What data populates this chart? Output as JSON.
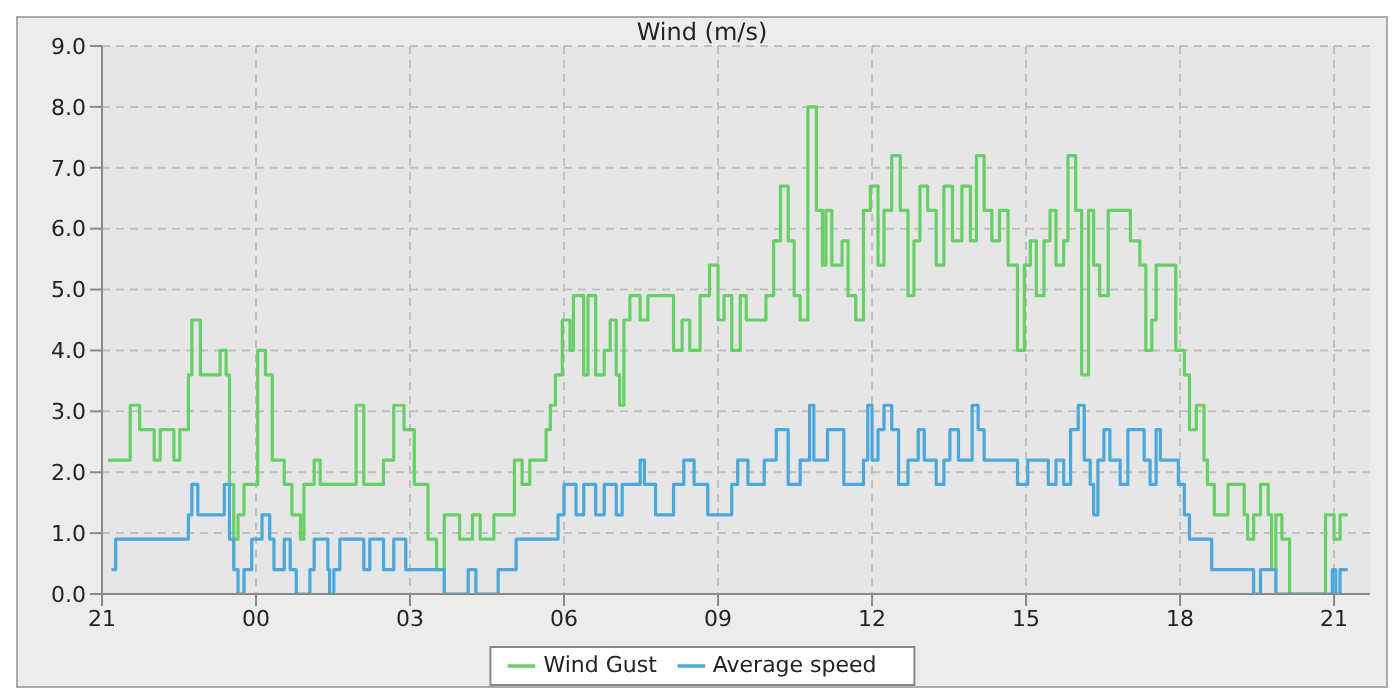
{
  "chart_data": {
    "type": "step",
    "title": "Wind (m/s)",
    "xlim": [
      "2000-01-01T21:00",
      "2000-01-02T21:42"
    ],
    "ylim": [
      0,
      9
    ],
    "xticks": [
      {
        "value": "2000-01-01T21:00",
        "label": "21"
      },
      {
        "value": "2000-01-02T00:00",
        "label": "00"
      },
      {
        "value": "2000-01-02T03:00",
        "label": "03"
      },
      {
        "value": "2000-01-02T06:00",
        "label": "06"
      },
      {
        "value": "2000-01-02T09:00",
        "label": "09"
      },
      {
        "value": "2000-01-02T12:00",
        "label": "12"
      },
      {
        "value": "2000-01-02T15:00",
        "label": "15"
      },
      {
        "value": "2000-01-02T18:00",
        "label": "18"
      },
      {
        "value": "2000-01-02T21:00",
        "label": "21"
      }
    ],
    "yticks": [
      {
        "value": 0,
        "label": "0.0"
      },
      {
        "value": 1,
        "label": "1.0"
      },
      {
        "value": 2,
        "label": "2.0"
      },
      {
        "value": 3,
        "label": "3.0"
      },
      {
        "value": 4,
        "label": "4.0"
      },
      {
        "value": 5,
        "label": "5.0"
      },
      {
        "value": 6,
        "label": "6.0"
      },
      {
        "value": 7,
        "label": "7.0"
      },
      {
        "value": 8,
        "label": "8.0"
      },
      {
        "value": 9,
        "label": "9.0"
      }
    ],
    "grid": true,
    "legend": "bottom",
    "marker": "none",
    "line_style": "solid",
    "series": [
      {
        "name": "Wind Gust",
        "color": "#66d066",
        "x": [
          "2000-01-01T21:07",
          "2000-01-01T21:33",
          "2000-01-01T21:44",
          "2000-01-01T22:01",
          "2000-01-01T22:08",
          "2000-01-01T22:24",
          "2000-01-01T22:31",
          "2000-01-01T22:41",
          "2000-01-01T22:45",
          "2000-01-01T22:55",
          "2000-01-01T23:06",
          "2000-01-01T23:18",
          "2000-01-01T23:25",
          "2000-01-01T23:29",
          "2000-01-01T23:34",
          "2000-01-01T23:39",
          "2000-01-01T23:46",
          "2000-01-02T00:02",
          "2000-01-02T00:11",
          "2000-01-02T00:19",
          "2000-01-02T00:33",
          "2000-01-02T00:42",
          "2000-01-02T00:52",
          "2000-01-02T00:56",
          "2000-01-02T01:08",
          "2000-01-02T01:15",
          "2000-01-02T01:47",
          "2000-01-02T01:57",
          "2000-01-02T02:06",
          "2000-01-02T02:29",
          "2000-01-02T02:41",
          "2000-01-02T02:53",
          "2000-01-02T03:05",
          "2000-01-02T03:21",
          "2000-01-02T03:31",
          "2000-01-02T03:40",
          "2000-01-02T03:58",
          "2000-01-02T04:13",
          "2000-01-02T04:22",
          "2000-01-02T04:38",
          "2000-01-02T05:02",
          "2000-01-02T05:11",
          "2000-01-02T05:20",
          "2000-01-02T05:39",
          "2000-01-02T05:44",
          "2000-01-02T05:50",
          "2000-01-02T05:58",
          "2000-01-02T06:07",
          "2000-01-02T06:11",
          "2000-01-02T06:23",
          "2000-01-02T06:28",
          "2000-01-02T06:37",
          "2000-01-02T06:47",
          "2000-01-02T06:54",
          "2000-01-02T07:01",
          "2000-01-02T07:05",
          "2000-01-02T07:10",
          "2000-01-02T07:17",
          "2000-01-02T07:29",
          "2000-01-02T07:38",
          "2000-01-02T08:08",
          "2000-01-02T08:18",
          "2000-01-02T08:27",
          "2000-01-02T08:39",
          "2000-01-02T08:50",
          "2000-01-02T09:00",
          "2000-01-02T09:07",
          "2000-01-02T09:16",
          "2000-01-02T09:26",
          "2000-01-02T09:33",
          "2000-01-02T09:56",
          "2000-01-02T10:05",
          "2000-01-02T10:13",
          "2000-01-02T10:22",
          "2000-01-02T10:29",
          "2000-01-02T10:36",
          "2000-01-02T10:45",
          "2000-01-02T10:55",
          "2000-01-02T11:02",
          "2000-01-02T11:06",
          "2000-01-02T11:13",
          "2000-01-02T11:25",
          "2000-01-02T11:32",
          "2000-01-02T11:41",
          "2000-01-02T11:50",
          "2000-01-02T11:58",
          "2000-01-02T12:07",
          "2000-01-02T12:14",
          "2000-01-02T12:23",
          "2000-01-02T12:33",
          "2000-01-02T12:42",
          "2000-01-02T12:49",
          "2000-01-02T12:56",
          "2000-01-02T13:05",
          "2000-01-02T13:15",
          "2000-01-02T13:24",
          "2000-01-02T13:34",
          "2000-01-02T13:45",
          "2000-01-02T13:55",
          "2000-01-02T14:02",
          "2000-01-02T14:11",
          "2000-01-02T14:20",
          "2000-01-02T14:29",
          "2000-01-02T14:39",
          "2000-01-02T14:50",
          "2000-01-02T14:58",
          "2000-01-02T15:05",
          "2000-01-02T15:12",
          "2000-01-02T15:21",
          "2000-01-02T15:28",
          "2000-01-02T15:35",
          "2000-01-02T15:44",
          "2000-01-02T15:49",
          "2000-01-02T15:58",
          "2000-01-02T16:05",
          "2000-01-02T16:13",
          "2000-01-02T16:19",
          "2000-01-02T16:26",
          "2000-01-02T16:36",
          "2000-01-02T17:02",
          "2000-01-02T17:13",
          "2000-01-02T17:20",
          "2000-01-02T17:27",
          "2000-01-02T17:32",
          "2000-01-02T17:55",
          "2000-01-02T18:05",
          "2000-01-02T18:11",
          "2000-01-02T18:19",
          "2000-01-02T18:28",
          "2000-01-02T18:32",
          "2000-01-02T18:40",
          "2000-01-02T18:56",
          "2000-01-02T19:15",
          "2000-01-02T19:19",
          "2000-01-02T19:26",
          "2000-01-02T19:34",
          "2000-01-02T19:43",
          "2000-01-02T19:47",
          "2000-01-02T19:52",
          "2000-01-02T19:59",
          "2000-01-02T20:08",
          "2000-01-02T20:50",
          "2000-01-02T21:00",
          "2000-01-02T21:07",
          "2000-01-02T21:16"
        ],
        "values": [
          2.2,
          3.1,
          2.7,
          2.2,
          2.7,
          2.2,
          2.7,
          3.6,
          4.5,
          3.6,
          3.6,
          4.0,
          3.6,
          1.8,
          0.9,
          1.3,
          1.8,
          4.0,
          3.6,
          2.2,
          1.8,
          1.3,
          0.9,
          1.8,
          2.2,
          1.8,
          1.8,
          3.1,
          1.8,
          2.2,
          3.1,
          2.7,
          1.8,
          0.9,
          0.4,
          1.3,
          0.9,
          1.3,
          0.9,
          1.3,
          2.2,
          1.8,
          2.2,
          2.7,
          3.1,
          3.6,
          4.5,
          4.0,
          4.9,
          3.6,
          4.9,
          3.6,
          4.0,
          4.5,
          3.6,
          3.1,
          4.5,
          4.9,
          4.5,
          4.9,
          4.0,
          4.5,
          4.0,
          4.9,
          5.4,
          4.5,
          4.9,
          4.0,
          4.9,
          4.5,
          4.9,
          5.8,
          6.7,
          5.8,
          4.9,
          4.5,
          8.0,
          6.3,
          5.4,
          6.3,
          5.4,
          5.8,
          4.9,
          4.5,
          6.3,
          6.7,
          5.4,
          6.3,
          7.2,
          6.3,
          4.9,
          5.8,
          6.7,
          6.3,
          5.4,
          6.7,
          5.8,
          6.7,
          5.8,
          7.2,
          6.3,
          5.8,
          6.3,
          5.4,
          4.0,
          5.4,
          5.8,
          4.9,
          5.8,
          6.3,
          5.4,
          5.8,
          7.2,
          6.3,
          3.6,
          6.3,
          5.4,
          4.9,
          6.3,
          5.8,
          5.4,
          4.0,
          4.5,
          5.4,
          4.0,
          3.6,
          2.7,
          3.1,
          2.2,
          1.8,
          1.3,
          1.8,
          1.3,
          0.9,
          1.3,
          1.8,
          1.3,
          0.4,
          1.3,
          0.9,
          0.0,
          1.3,
          0.9,
          1.3,
          1.3
        ]
      },
      {
        "name": "Average speed",
        "color": "#4aa8dc",
        "x": [
          "2000-01-01T21:11",
          "2000-01-01T21:16",
          "2000-01-01T22:41",
          "2000-01-01T22:45",
          "2000-01-01T22:52",
          "2000-01-01T23:23",
          "2000-01-01T23:29",
          "2000-01-01T23:34",
          "2000-01-01T23:39",
          "2000-01-01T23:46",
          "2000-01-01T23:55",
          "2000-01-02T00:07",
          "2000-01-02T00:16",
          "2000-01-02T00:21",
          "2000-01-02T00:33",
          "2000-01-02T00:40",
          "2000-01-02T00:47",
          "2000-01-02T01:03",
          "2000-01-02T01:08",
          "2000-01-02T01:24",
          "2000-01-02T01:26",
          "2000-01-02T01:31",
          "2000-01-02T01:38",
          "2000-01-02T02:06",
          "2000-01-02T02:13",
          "2000-01-02T02:29",
          "2000-01-02T02:41",
          "2000-01-02T02:55",
          "2000-01-02T03:40",
          "2000-01-02T04:08",
          "2000-01-02T04:17",
          "2000-01-02T04:43",
          "2000-01-02T05:04",
          "2000-01-02T05:53",
          "2000-01-02T06:00",
          "2000-01-02T06:14",
          "2000-01-02T06:23",
          "2000-01-02T06:37",
          "2000-01-02T06:47",
          "2000-01-02T07:01",
          "2000-01-02T07:08",
          "2000-01-02T07:29",
          "2000-01-02T07:34",
          "2000-01-02T07:47",
          "2000-01-02T08:08",
          "2000-01-02T08:20",
          "2000-01-02T08:32",
          "2000-01-02T08:48",
          "2000-01-02T09:16",
          "2000-01-02T09:23",
          "2000-01-02T09:35",
          "2000-01-02T09:54",
          "2000-01-02T10:08",
          "2000-01-02T10:22",
          "2000-01-02T10:36",
          "2000-01-02T10:47",
          "2000-01-02T10:52",
          "2000-01-02T11:08",
          "2000-01-02T11:27",
          "2000-01-02T11:50",
          "2000-01-02T11:55",
          "2000-01-02T12:00",
          "2000-01-02T12:07",
          "2000-01-02T12:14",
          "2000-01-02T12:23",
          "2000-01-02T12:31",
          "2000-01-02T12:42",
          "2000-01-02T12:54",
          "2000-01-02T13:01",
          "2000-01-02T13:15",
          "2000-01-02T13:24",
          "2000-01-02T13:31",
          "2000-01-02T13:41",
          "2000-01-02T13:57",
          "2000-01-02T14:04",
          "2000-01-02T14:11",
          "2000-01-02T14:50",
          "2000-01-02T15:02",
          "2000-01-02T15:26",
          "2000-01-02T15:35",
          "2000-01-02T15:44",
          "2000-01-02T15:52",
          "2000-01-02T16:01",
          "2000-01-02T16:08",
          "2000-01-02T16:15",
          "2000-01-02T16:19",
          "2000-01-02T16:24",
          "2000-01-02T16:31",
          "2000-01-02T16:38",
          "2000-01-02T16:50",
          "2000-01-02T16:59",
          "2000-01-02T17:18",
          "2000-01-02T17:25",
          "2000-01-02T17:32",
          "2000-01-02T17:37",
          "2000-01-02T17:58",
          "2000-01-02T18:05",
          "2000-01-02T18:11",
          "2000-01-02T18:37",
          "2000-01-02T19:26",
          "2000-01-02T19:34",
          "2000-01-02T19:52",
          "2000-01-02T20:58",
          "2000-01-02T21:02",
          "2000-01-02T21:07",
          "2000-01-02T21:16"
        ],
        "values": [
          0.4,
          0.9,
          1.3,
          1.8,
          1.3,
          1.8,
          0.9,
          0.4,
          0.0,
          0.4,
          0.9,
          1.3,
          0.9,
          0.4,
          0.9,
          0.4,
          0.0,
          0.4,
          0.9,
          0.4,
          0.0,
          0.4,
          0.9,
          0.4,
          0.9,
          0.4,
          0.9,
          0.4,
          0.0,
          0.4,
          0.0,
          0.4,
          0.9,
          1.3,
          1.8,
          1.3,
          1.8,
          1.3,
          1.8,
          1.3,
          1.8,
          2.2,
          1.8,
          1.3,
          1.8,
          2.2,
          1.8,
          1.3,
          1.8,
          2.2,
          1.8,
          2.2,
          2.7,
          1.8,
          2.2,
          3.1,
          2.2,
          2.7,
          1.8,
          2.2,
          3.1,
          2.2,
          2.7,
          3.1,
          2.7,
          1.8,
          2.2,
          2.7,
          2.2,
          1.8,
          2.2,
          2.7,
          2.2,
          3.1,
          2.7,
          2.2,
          1.8,
          2.2,
          1.8,
          2.2,
          1.8,
          2.7,
          3.1,
          2.2,
          1.8,
          1.3,
          2.2,
          2.7,
          2.2,
          1.8,
          2.7,
          2.2,
          1.8,
          2.7,
          2.2,
          1.8,
          1.3,
          0.9,
          0.4,
          0.0,
          0.4,
          0.0,
          0.4,
          0.0,
          0.4,
          0.4
        ]
      }
    ]
  }
}
